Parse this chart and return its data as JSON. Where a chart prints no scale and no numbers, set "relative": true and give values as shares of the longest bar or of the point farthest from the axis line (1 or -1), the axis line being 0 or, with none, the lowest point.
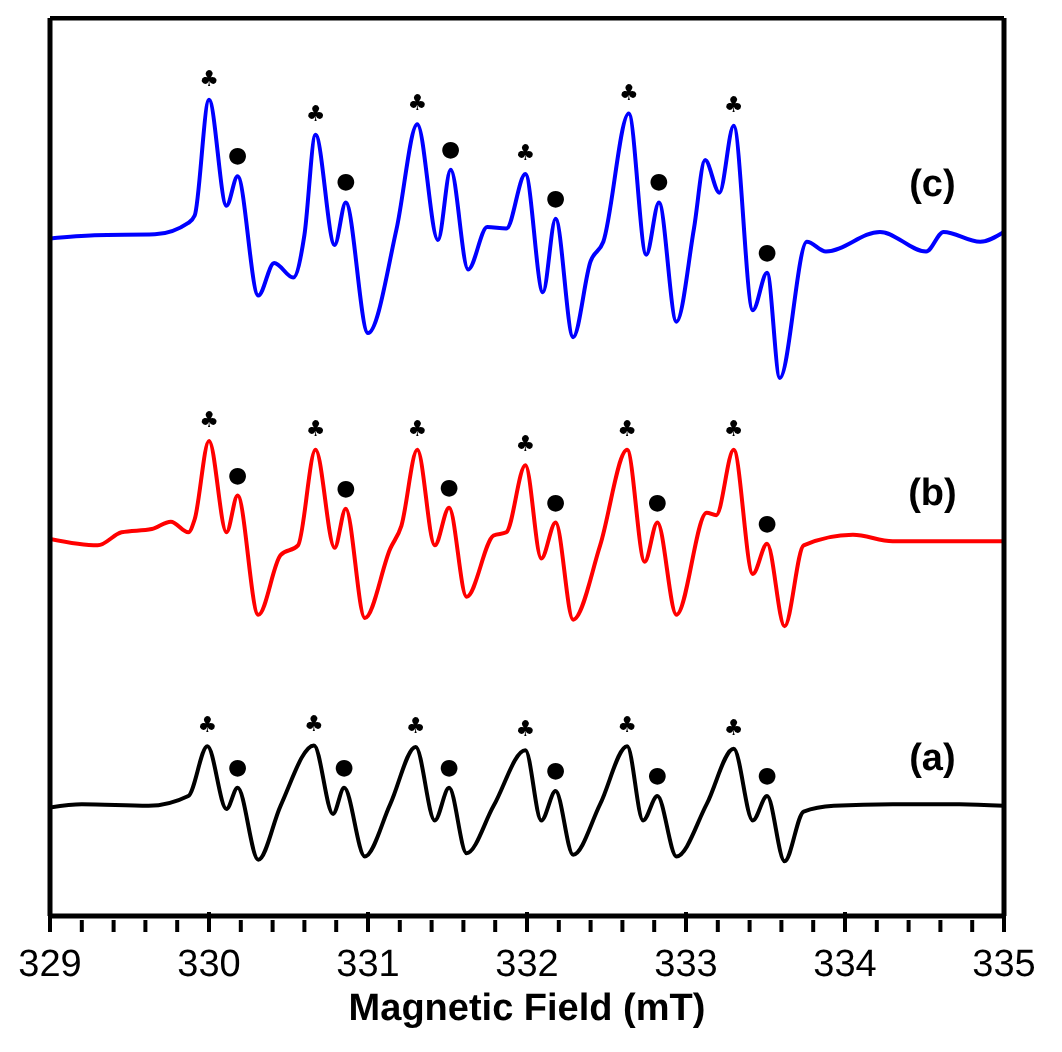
{
  "chart_data": {
    "type": "line",
    "relative": true,
    "xlabel": "Magnetic Field (mT)",
    "xlim": [
      329,
      335
    ],
    "xticks": [
      329,
      {
        "value": 329.2,
        "label": null
      },
      {
        "value": 329.4,
        "label": null
      },
      {
        "value": 329.6,
        "label": null
      },
      {
        "value": 329.8,
        "label": null
      },
      330,
      {
        "value": 330.2,
        "label": null
      },
      {
        "value": 330.4,
        "label": null
      },
      {
        "value": 330.6,
        "label": null
      },
      {
        "value": 330.8,
        "label": null
      },
      331,
      {
        "value": 331.2,
        "label": null
      },
      {
        "value": 331.4,
        "label": null
      },
      {
        "value": 331.6,
        "label": null
      },
      {
        "value": 331.8,
        "label": null
      },
      332,
      {
        "value": 332.2,
        "label": null
      },
      {
        "value": 332.4,
        "label": null
      },
      {
        "value": 332.6,
        "label": null
      },
      {
        "value": 332.8,
        "label": null
      },
      333,
      {
        "value": 333.2,
        "label": null
      },
      {
        "value": 333.4,
        "label": null
      },
      {
        "value": 333.6,
        "label": null
      },
      {
        "value": 333.8,
        "label": null
      },
      334,
      {
        "value": 334.2,
        "label": null
      },
      {
        "value": 334.4,
        "label": null
      },
      {
        "value": 334.6,
        "label": null
      },
      {
        "value": 334.8,
        "label": null
      },
      335
    ],
    "tick_labels": "x",
    "marker": "none",
    "line_style": "solid",
    "series": [
      {
        "name": "(a)",
        "color": "#000000",
        "x": [
          329.0,
          329.2,
          329.62,
          329.87,
          329.99,
          330.11,
          330.18,
          330.31,
          330.45,
          330.66,
          330.78,
          330.85,
          330.98,
          331.14,
          331.3,
          331.42,
          331.51,
          331.62,
          331.79,
          331.99,
          332.09,
          332.18,
          332.29,
          332.46,
          332.63,
          332.73,
          332.82,
          332.94,
          333.13,
          333.3,
          333.42,
          333.51,
          333.62,
          333.74,
          333.93,
          334.3,
          334.72,
          335.0
        ],
        "values": [
          0.133,
          0.137,
          0.135,
          0.147,
          0.208,
          0.131,
          0.157,
          0.069,
          0.135,
          0.209,
          0.125,
          0.157,
          0.073,
          0.137,
          0.207,
          0.117,
          0.157,
          0.077,
          0.135,
          0.203,
          0.117,
          0.153,
          0.075,
          0.137,
          0.208,
          0.117,
          0.147,
          0.073,
          0.137,
          0.205,
          0.117,
          0.147,
          0.067,
          0.128,
          0.135,
          0.137,
          0.137,
          0.135
        ]
      },
      {
        "name": "(b)",
        "color": "#ff0000",
        "x": [
          329.0,
          329.3,
          329.45,
          329.64,
          329.76,
          329.87,
          329.91,
          330.0,
          330.11,
          330.18,
          330.31,
          330.45,
          330.56,
          330.67,
          330.79,
          330.86,
          330.98,
          331.14,
          331.21,
          331.31,
          331.42,
          331.51,
          331.62,
          331.79,
          331.87,
          331.99,
          332.09,
          332.18,
          332.29,
          332.46,
          332.63,
          332.74,
          332.82,
          332.94,
          333.13,
          333.19,
          333.3,
          333.42,
          333.51,
          333.62,
          333.74,
          334.05,
          334.3,
          335.0
        ],
        "values": [
          0.462,
          0.454,
          0.47,
          0.474,
          0.483,
          0.47,
          0.486,
          0.582,
          0.47,
          0.515,
          0.369,
          0.442,
          0.454,
          0.571,
          0.451,
          0.499,
          0.365,
          0.45,
          0.478,
          0.571,
          0.454,
          0.5,
          0.391,
          0.466,
          0.47,
          0.552,
          0.438,
          0.482,
          0.363,
          0.454,
          0.571,
          0.434,
          0.482,
          0.369,
          0.494,
          0.491,
          0.571,
          0.419,
          0.456,
          0.355,
          0.454,
          0.467,
          0.459,
          0.459
        ]
      },
      {
        "name": "(c)",
        "color": "#0000ff",
        "x": [
          329.0,
          329.28,
          329.66,
          329.87,
          329.91,
          330.0,
          330.11,
          330.18,
          330.31,
          330.41,
          330.53,
          330.6,
          330.67,
          330.79,
          330.86,
          331.0,
          331.18,
          331.31,
          331.44,
          331.52,
          331.63,
          331.75,
          331.87,
          331.99,
          332.1,
          332.18,
          332.29,
          332.4,
          332.48,
          332.64,
          332.75,
          332.83,
          332.94,
          333.05,
          333.12,
          333.21,
          333.3,
          333.42,
          333.51,
          333.59,
          333.76,
          333.88,
          334.22,
          334.51,
          334.62,
          334.85,
          335.0
        ],
        "values": [
          0.83,
          0.834,
          0.835,
          0.849,
          0.858,
          1,
          0.87,
          0.906,
          0.76,
          0.8,
          0.782,
          0.834,
          0.957,
          0.822,
          0.874,
          0.714,
          0.842,
          0.97,
          0.828,
          0.914,
          0.792,
          0.844,
          0.842,
          0.909,
          0.764,
          0.854,
          0.709,
          0.802,
          0.826,
          0.983,
          0.81,
          0.874,
          0.728,
          0.842,
          0.926,
          0.886,
          0.968,
          0.742,
          0.788,
          0.659,
          0.826,
          0.814,
          0.838,
          0.814,
          0.838,
          0.826,
          0.838
        ]
      }
    ],
    "annotations": [
      {
        "text": "♣",
        "x": 329.99,
        "y": 0.208
      },
      {
        "text": "♣",
        "x": 330.66,
        "y": 0.209
      },
      {
        "text": "♣",
        "x": 331.3,
        "y": 0.207
      },
      {
        "text": "♣",
        "x": 331.99,
        "y": 0.203
      },
      {
        "text": "♣",
        "x": 332.63,
        "y": 0.208
      },
      {
        "text": "♣",
        "x": 333.3,
        "y": 0.205
      },
      {
        "text": "●",
        "x": 330.18,
        "y": 0.157
      },
      {
        "text": "●",
        "x": 330.85,
        "y": 0.157
      },
      {
        "text": "●",
        "x": 331.51,
        "y": 0.157
      },
      {
        "text": "●",
        "x": 332.18,
        "y": 0.153
      },
      {
        "text": "●",
        "x": 332.82,
        "y": 0.147
      },
      {
        "text": "●",
        "x": 333.51,
        "y": 0.147
      },
      {
        "text": "♣",
        "x": 330.0,
        "y": 0.582
      },
      {
        "text": "♣",
        "x": 330.67,
        "y": 0.571
      },
      {
        "text": "♣",
        "x": 331.31,
        "y": 0.571
      },
      {
        "text": "♣",
        "x": 331.99,
        "y": 0.552
      },
      {
        "text": "♣",
        "x": 332.63,
        "y": 0.571
      },
      {
        "text": "♣",
        "x": 333.3,
        "y": 0.571
      },
      {
        "text": "●",
        "x": 330.18,
        "y": 0.515
      },
      {
        "text": "●",
        "x": 330.86,
        "y": 0.499
      },
      {
        "text": "●",
        "x": 331.51,
        "y": 0.5
      },
      {
        "text": "●",
        "x": 332.18,
        "y": 0.482
      },
      {
        "text": "●",
        "x": 332.82,
        "y": 0.482
      },
      {
        "text": "●",
        "x": 333.51,
        "y": 0.456
      },
      {
        "text": "♣",
        "x": 330.0,
        "y": 1
      },
      {
        "text": "♣",
        "x": 330.67,
        "y": 0.957
      },
      {
        "text": "♣",
        "x": 331.31,
        "y": 0.97
      },
      {
        "text": "♣",
        "x": 331.99,
        "y": 0.909
      },
      {
        "text": "♣",
        "x": 332.64,
        "y": 0.983
      },
      {
        "text": "♣",
        "x": 333.3,
        "y": 0.968
      },
      {
        "text": "●",
        "x": 330.18,
        "y": 0.906
      },
      {
        "text": "●",
        "x": 330.86,
        "y": 0.874
      },
      {
        "text": "●",
        "x": 331.52,
        "y": 0.914
      },
      {
        "text": "●",
        "x": 332.18,
        "y": 0.854
      },
      {
        "text": "●",
        "x": 332.83,
        "y": 0.874
      },
      {
        "text": "●",
        "x": 333.51,
        "y": 0.788
      }
    ]
  }
}
